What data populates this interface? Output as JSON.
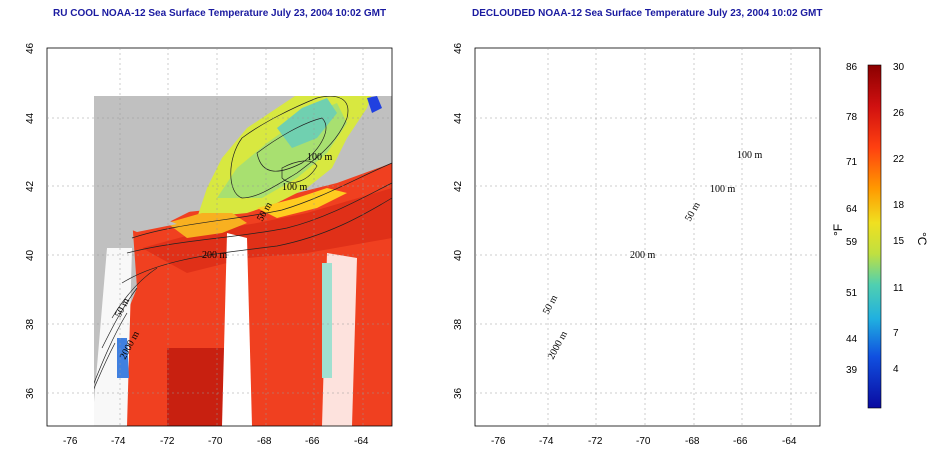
{
  "left_title": "RU COOL NOAA-12 Sea Surface Temperature July 23, 2004 10:02 GMT",
  "right_title": "DECLOUDED NOAA-12 Sea Surface Temperature July 23, 2004 10:02 GMT",
  "lat_ticks": [
    "46",
    "44",
    "42",
    "40",
    "38",
    "36"
  ],
  "lon_ticks": [
    "-76",
    "-74",
    "-72",
    "-70",
    "-68",
    "-66",
    "-64"
  ],
  "contour_labels": {
    "d100a": "100 m",
    "d100b": "100 m",
    "d50": "50 m",
    "d200": "200 m",
    "d50s": "50 m",
    "d2000": "2000 m"
  },
  "colorbar": {
    "f_label": "°F",
    "c_label": "°C",
    "f_ticks": [
      "86",
      "78",
      "71",
      "64",
      "59",
      "51",
      "44",
      "39"
    ],
    "c_ticks": [
      "30",
      "26",
      "22",
      "18",
      "15",
      "11",
      "7",
      "4"
    ]
  },
  "colors": {
    "land": "#c0c0c0",
    "cloud": "#ffffff",
    "title": "#1a1aa0"
  }
}
